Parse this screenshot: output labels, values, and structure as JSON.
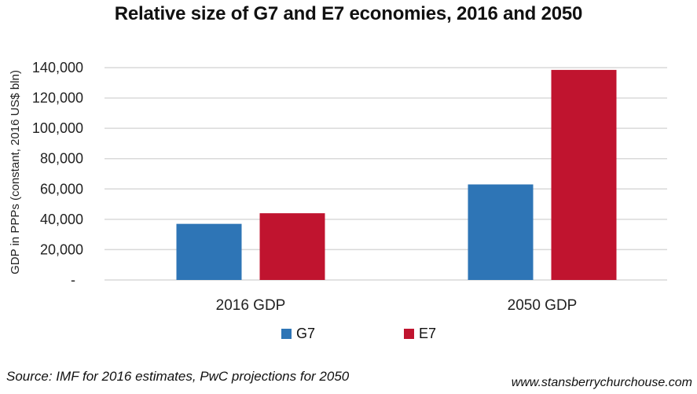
{
  "chart_data": {
    "type": "bar",
    "title": "Relative size of G7 and E7 economies, 2016 and 2050",
    "categories": [
      "2016 GDP",
      "2050 GDP"
    ],
    "series": [
      {
        "name": "G7",
        "values": [
          37000,
          63000
        ],
        "color": "#2E75B6"
      },
      {
        "name": "E7",
        "values": [
          44000,
          138500
        ],
        "color": "#C0142F"
      }
    ],
    "xlabel": "",
    "ylabel": "GDP in PPPs (constant, 2016 US$ bln)",
    "ylim": [
      0,
      140000
    ],
    "yticks": [
      0,
      20000,
      40000,
      60000,
      80000,
      100000,
      120000,
      140000
    ],
    "ytick_labels": [
      "-",
      "20,000",
      "40,000",
      "60,000",
      "80,000",
      "100,000",
      "120,000",
      "140,000"
    ],
    "grid": true,
    "legend_position": "bottom"
  },
  "footer": {
    "source": "Source: IMF for 2016 estimates, PwC projections for 2050",
    "website": "www.stansberrychurchouse.com"
  },
  "colors": {
    "gridline": "#D9D9D9",
    "axis_text": "#222222"
  }
}
